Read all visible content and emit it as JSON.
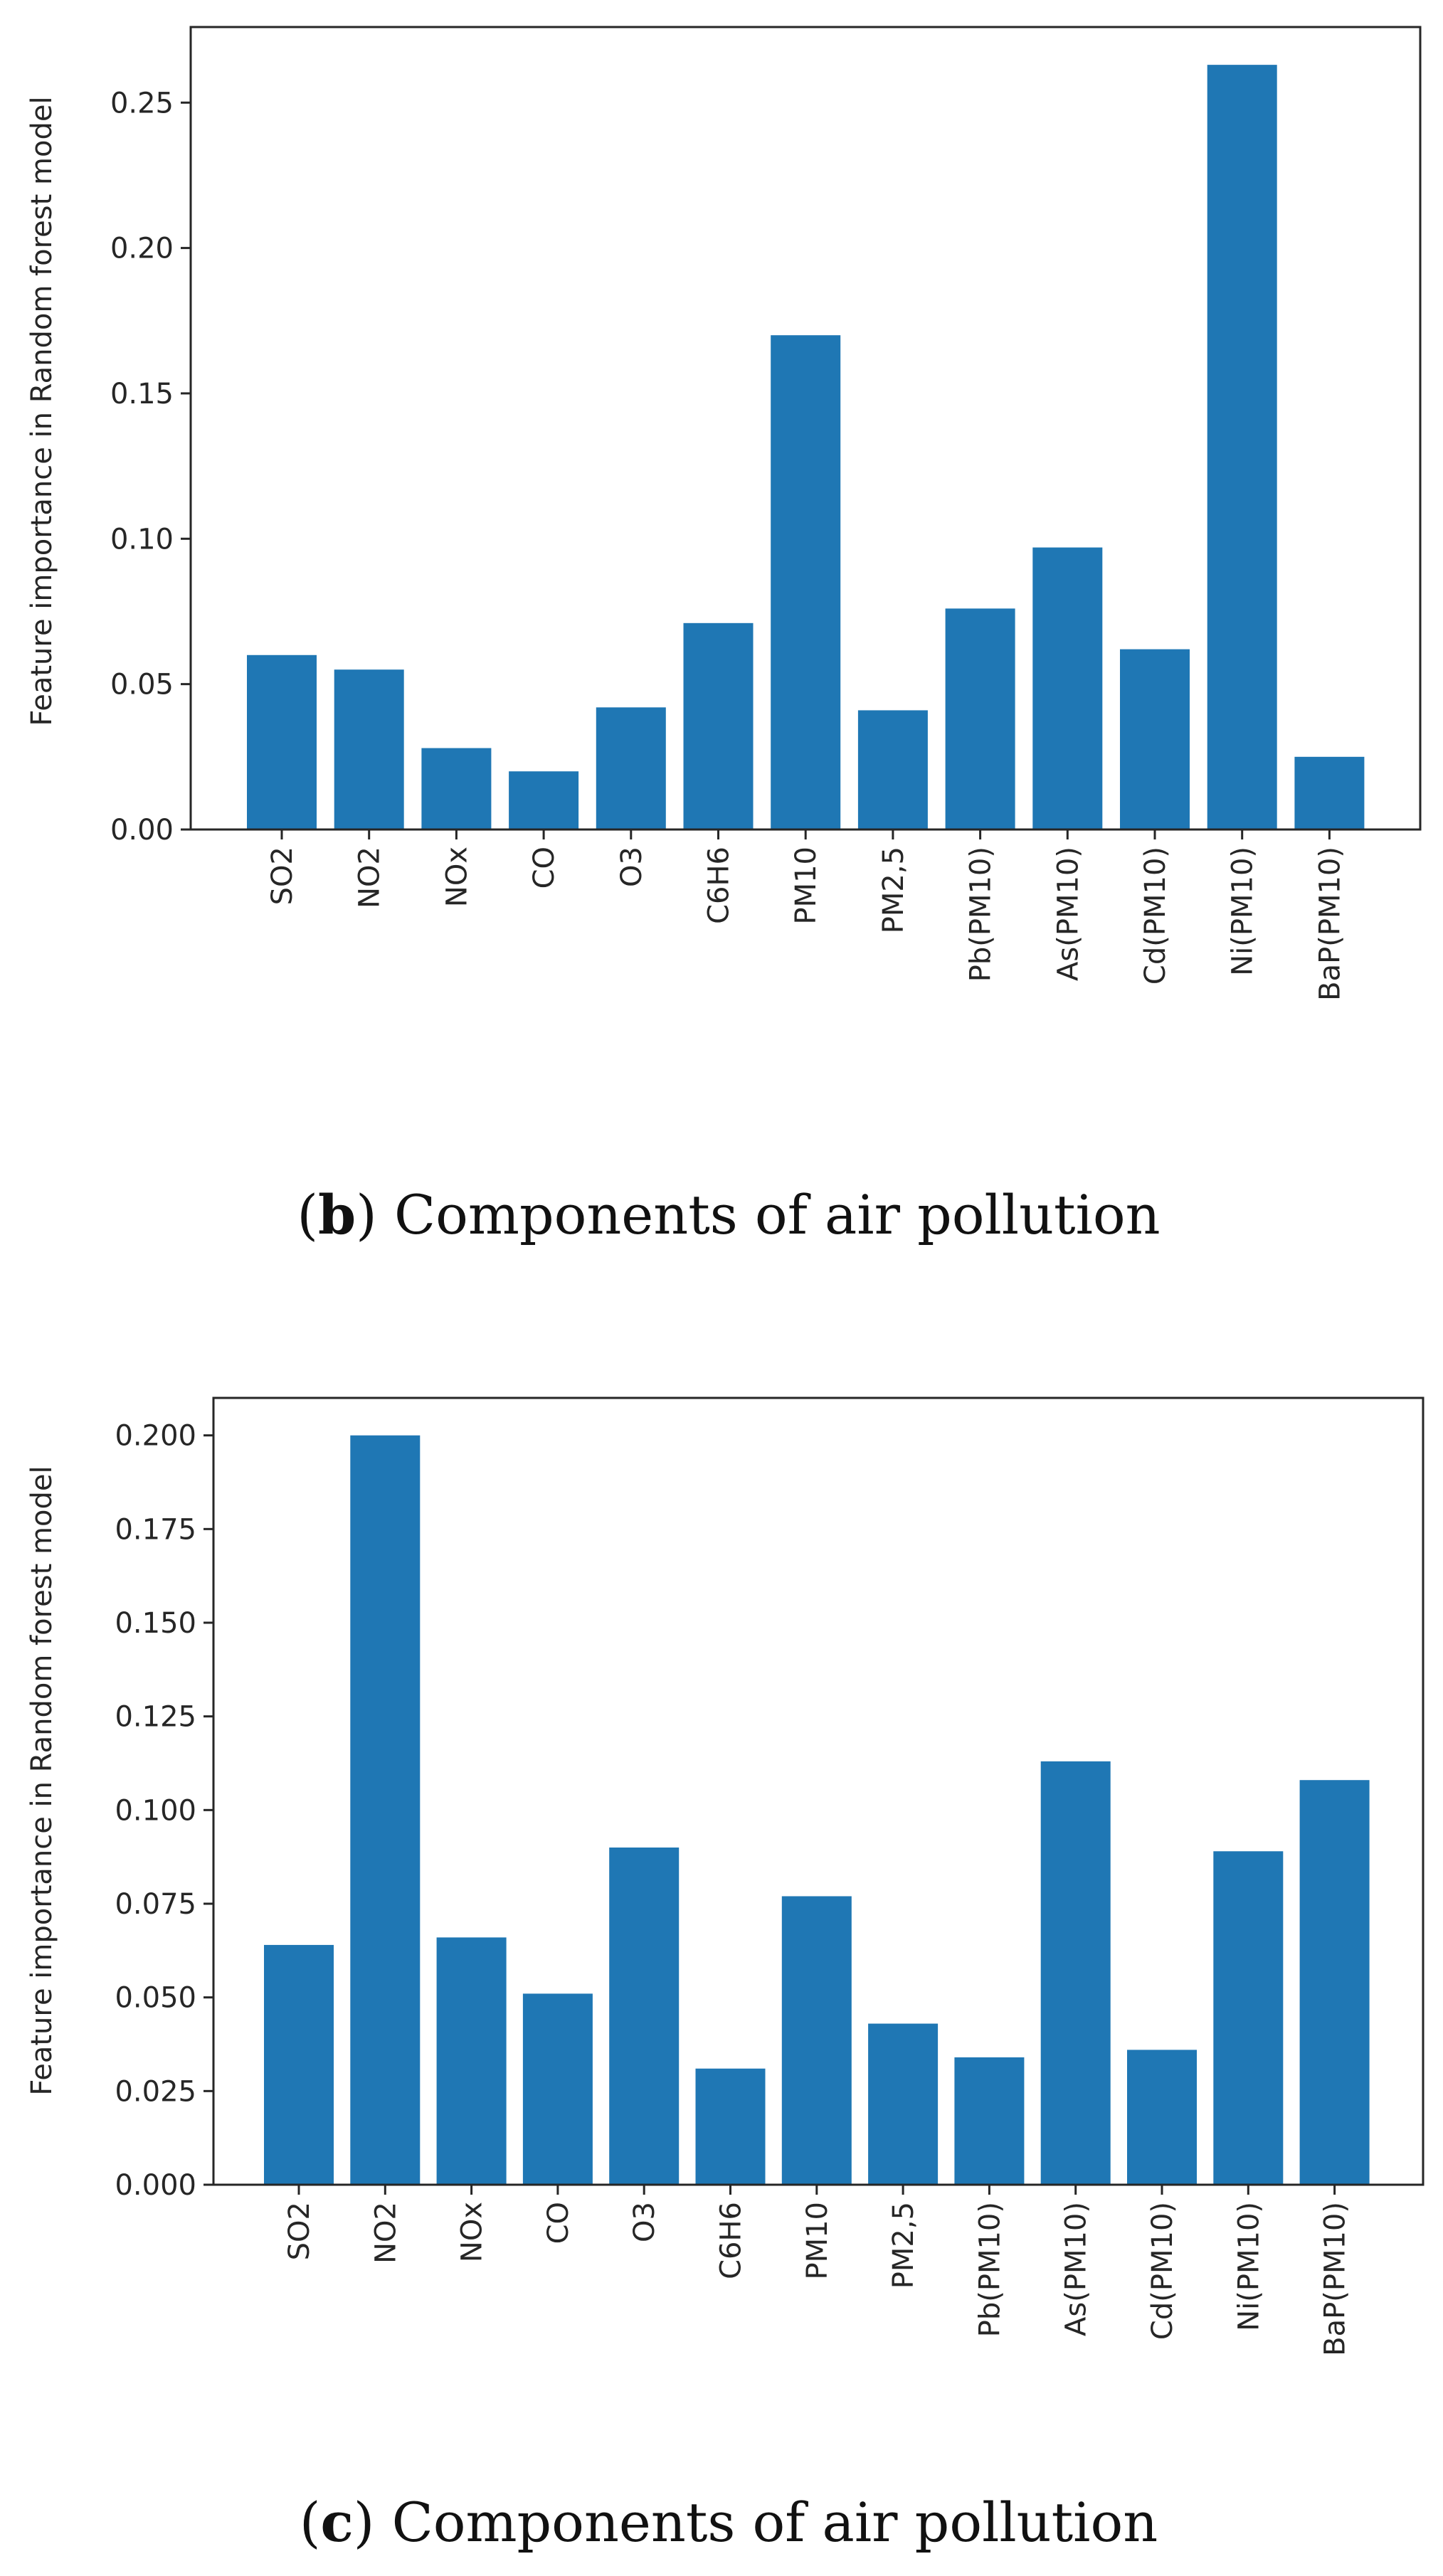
{
  "bar_color": "#1f77b4",
  "chart_data": [
    {
      "type": "bar",
      "title": "",
      "xlabel": "",
      "ylabel": "Feature importance in Random forest model",
      "ylim": [
        0,
        0.276
      ],
      "yticks": [
        "0.00",
        "0.05",
        "0.10",
        "0.15",
        "0.20",
        "0.25"
      ],
      "categories": [
        "SO2",
        "NO2",
        "NOx",
        "CO",
        "O3",
        "C6H6",
        "PM10",
        "PM2,5",
        "Pb(PM10)",
        "As(PM10)",
        "Cd(PM10)",
        "Ni(PM10)",
        "BaP(PM10)"
      ],
      "values": [
        0.06,
        0.055,
        0.028,
        0.02,
        0.042,
        0.071,
        0.17,
        0.041,
        0.076,
        0.097,
        0.062,
        0.263,
        0.025
      ],
      "caption_letter": "b",
      "caption_text": "Components of air pollution"
    },
    {
      "type": "bar",
      "title": "",
      "xlabel": "",
      "ylabel": "Feature importance in Random forest model",
      "ylim": [
        0,
        0.21
      ],
      "yticks": [
        "0.000",
        "0.025",
        "0.050",
        "0.075",
        "0.100",
        "0.125",
        "0.150",
        "0.175",
        "0.200"
      ],
      "categories": [
        "SO2",
        "NO2",
        "NOx",
        "CO",
        "O3",
        "C6H6",
        "PM10",
        "PM2,5",
        "Pb(PM10)",
        "As(PM10)",
        "Cd(PM10)",
        "Ni(PM10)",
        "BaP(PM10)"
      ],
      "values": [
        0.064,
        0.2,
        0.066,
        0.051,
        0.09,
        0.031,
        0.077,
        0.043,
        0.034,
        0.113,
        0.036,
        0.089,
        0.108
      ],
      "caption_letter": "c",
      "caption_text": "Components of air pollution"
    }
  ]
}
